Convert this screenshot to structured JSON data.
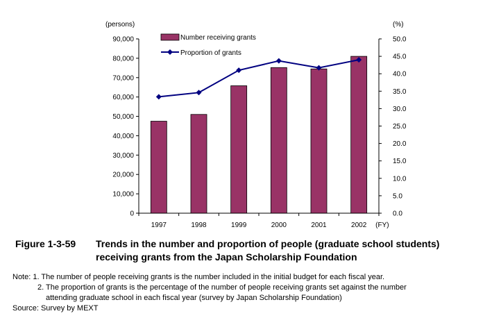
{
  "chart_data": {
    "type": "bar-line combo",
    "categories": [
      "1997",
      "1998",
      "1999",
      "2000",
      "2001",
      "2002"
    ],
    "x_unit": "(FY)",
    "series": [
      {
        "name": "Number receiving grants",
        "type": "bar",
        "axis": "left",
        "values": [
          47500,
          51000,
          65800,
          75200,
          74500,
          81000
        ],
        "color": "#993366"
      },
      {
        "name": "Proportion of grants",
        "type": "line",
        "axis": "right",
        "values": [
          33.4,
          34.6,
          41.0,
          43.7,
          41.7,
          44.0
        ],
        "color": "#000080"
      }
    ],
    "left_axis": {
      "unit": "(persons)",
      "min": 0,
      "max": 90000,
      "step": 10000,
      "tick_labels": [
        "0",
        "10,000",
        "20,000",
        "30,000",
        "40,000",
        "50,000",
        "60,000",
        "70,000",
        "80,000",
        "90,000"
      ]
    },
    "right_axis": {
      "unit": "(%)",
      "min": 0,
      "max": 50,
      "step": 5,
      "tick_labels": [
        "0.0",
        "5.0",
        "10.0",
        "15.0",
        "20.0",
        "25.0",
        "30.0",
        "35.0",
        "40.0",
        "45.0",
        "50.0"
      ]
    },
    "legend_position": "top-left",
    "grid": false
  },
  "caption": {
    "label": "Figure 1-3-59",
    "line1": "Trends in the number and proportion of people (graduate school students)",
    "line2": "receiving grants from the Japan Scholarship Foundation"
  },
  "notes": {
    "note1": "Note: 1. The number of people receiving grants is the number included in the initial budget for each fiscal year.",
    "note2a": "2. The proportion of grants is the percentage of the number of people receiving grants set against the number",
    "note2b": "attending graduate school in each fiscal year (survey by Japan Scholarship Foundation)",
    "source": "Source: Survey by MEXT"
  }
}
